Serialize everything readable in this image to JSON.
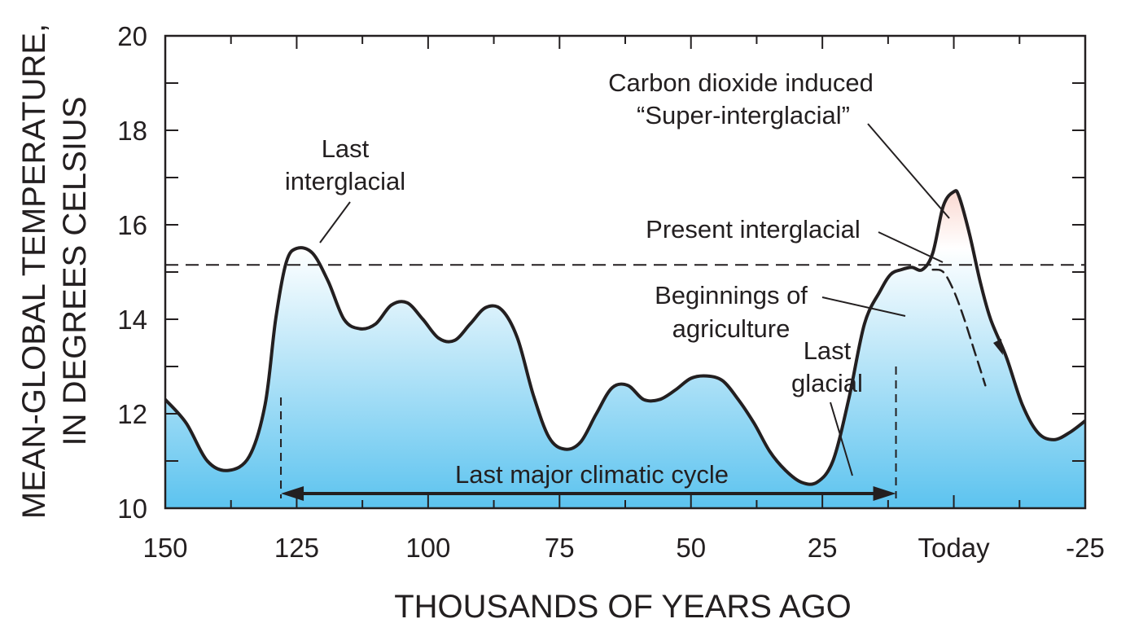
{
  "chart_data": {
    "type": "line",
    "title": "",
    "xlabel": "THOUSANDS OF YEARS AGO",
    "ylabel_line1": "MEAN-GLOBAL TEMPERATURE,",
    "ylabel_line2": "IN DEGREES CELSIUS",
    "xlim": [
      150,
      -25
    ],
    "ylim": [
      10,
      20
    ],
    "x_ticks": [
      {
        "value": 150,
        "label": "150"
      },
      {
        "value": 125,
        "label": "125"
      },
      {
        "value": 100,
        "label": "100"
      },
      {
        "value": 75,
        "label": "75"
      },
      {
        "value": 50,
        "label": "50"
      },
      {
        "value": 25,
        "label": "25"
      },
      {
        "value": 0,
        "label": "Today"
      },
      {
        "value": -25,
        "label": "-25"
      }
    ],
    "y_ticks": [
      10,
      12,
      14,
      16,
      18,
      20
    ],
    "reference_line": {
      "y": 15.15,
      "style": "dashed"
    },
    "series": [
      {
        "name": "Mean-global temperature",
        "x": [
          150,
          146,
          142,
          138,
          134,
          131,
          129,
          127,
          125,
          122,
          119,
          116,
          113,
          110,
          107,
          104,
          101,
          98,
          95,
          92,
          89,
          86,
          83,
          80,
          77,
          74,
          71,
          68,
          65,
          62,
          59,
          56,
          53,
          50,
          47,
          44,
          41,
          38,
          35,
          32,
          29,
          26,
          23,
          20,
          17,
          14,
          12,
          10,
          8,
          6,
          4,
          2,
          0,
          -1,
          -3,
          -5,
          -7,
          -10,
          -13,
          -16,
          -19,
          -22,
          -25
        ],
        "y": [
          12.3,
          11.8,
          11.0,
          10.8,
          11.1,
          12.2,
          14.0,
          15.2,
          15.5,
          15.4,
          14.8,
          14.0,
          13.8,
          13.9,
          14.3,
          14.35,
          14.0,
          13.6,
          13.55,
          13.9,
          14.25,
          14.2,
          13.6,
          12.4,
          11.5,
          11.25,
          11.4,
          12.0,
          12.55,
          12.6,
          12.3,
          12.3,
          12.5,
          12.75,
          12.8,
          12.7,
          12.3,
          11.8,
          11.2,
          10.8,
          10.55,
          10.55,
          11.0,
          12.3,
          13.9,
          14.6,
          14.95,
          15.05,
          15.1,
          15.05,
          15.4,
          16.4,
          16.7,
          16.6,
          15.8,
          14.8,
          14.0,
          13.2,
          12.2,
          11.6,
          11.45,
          11.6,
          11.85
        ]
      },
      {
        "name": "Present interglacial projection (dashed)",
        "x": [
          4,
          2,
          0,
          -2,
          -4,
          -6
        ],
        "y": [
          15.05,
          15.0,
          14.6,
          14.0,
          13.3,
          12.6
        ]
      }
    ],
    "annotations": {
      "last_interglacial_1": "Last",
      "last_interglacial_2": "interglacial",
      "co2_1": "Carbon dioxide induced",
      "co2_2": "“Super-interglacial”",
      "present": "Present interglacial",
      "agri_1": "Beginnings of",
      "agri_2": "agriculture",
      "last_glacial_1": "Last",
      "last_glacial_2": "glacial",
      "cycle": "Last major climatic cycle"
    },
    "cycle_range": [
      128,
      11
    ],
    "colors": {
      "warm": "#ee7155",
      "neutral": "#ffffff",
      "cool": "#5cc3ef",
      "line": "#231f20"
    }
  }
}
